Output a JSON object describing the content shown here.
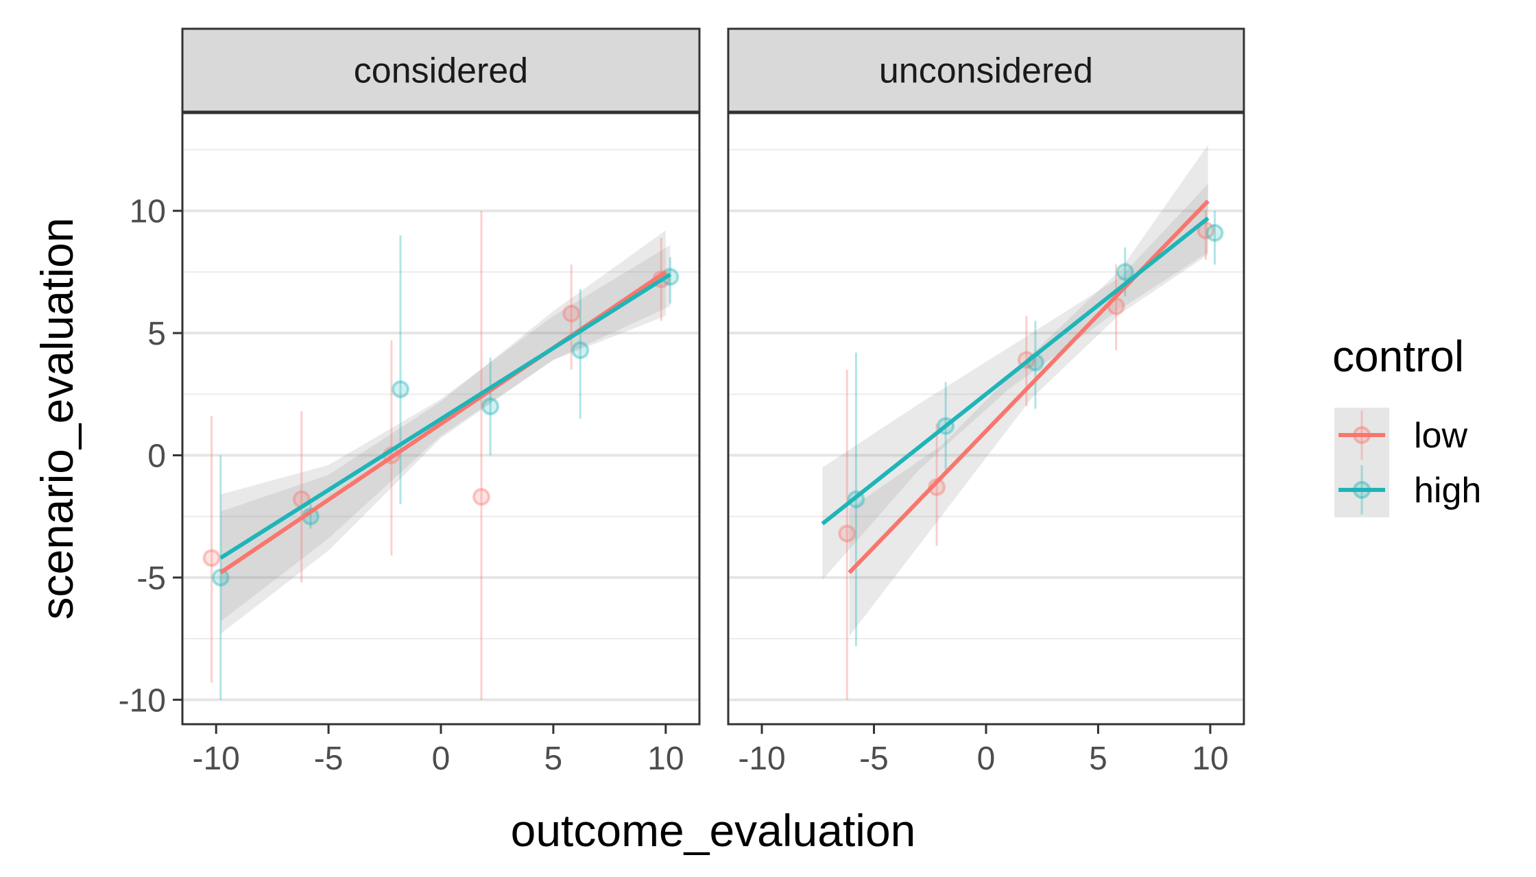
{
  "chart_data": {
    "type": "scatter",
    "xlabel": "outcome_evaluation",
    "ylabel": "scenario_evaluation",
    "xlim": [
      -11.5,
      11.5
    ],
    "ylim": [
      -11,
      14
    ],
    "x_ticks": [
      -10,
      -5,
      0,
      5,
      10
    ],
    "y_ticks": [
      -10,
      -5,
      0,
      5,
      10
    ],
    "grid": true,
    "legend": {
      "title": "control",
      "placement": "right",
      "entries": [
        {
          "key": "low",
          "label": "low",
          "color": "#F8766D"
        },
        {
          "key": "high",
          "label": "high",
          "color": "#1FB5B8"
        }
      ]
    },
    "facets": [
      {
        "label": "considered",
        "points": [
          {
            "series": "low",
            "x": -10.2,
            "y": -4.2,
            "ymin": -9.3,
            "ymax": 1.6
          },
          {
            "series": "low",
            "x": -6.2,
            "y": -1.8,
            "ymin": -5.2,
            "ymax": 1.8
          },
          {
            "series": "low",
            "x": -2.2,
            "y": 0.0,
            "ymin": -4.1,
            "ymax": 4.7
          },
          {
            "series": "low",
            "x": 1.8,
            "y": -1.7,
            "ymin": -10.0,
            "ymax": 10.0
          },
          {
            "series": "low",
            "x": 5.8,
            "y": 5.8,
            "ymin": 3.5,
            "ymax": 7.8
          },
          {
            "series": "low",
            "x": 9.8,
            "y": 7.2,
            "ymin": 5.5,
            "ymax": 8.9
          },
          {
            "series": "high",
            "x": -9.8,
            "y": -5.0,
            "ymin": -10.0,
            "ymax": 0.0
          },
          {
            "series": "high",
            "x": -5.8,
            "y": -2.5,
            "ymin": -3.0,
            "ymax": -2.0
          },
          {
            "series": "high",
            "x": -1.8,
            "y": 2.7,
            "ymin": -2.0,
            "ymax": 9.0
          },
          {
            "series": "high",
            "x": 2.2,
            "y": 2.0,
            "ymin": 0.0,
            "ymax": 4.0
          },
          {
            "series": "high",
            "x": 6.2,
            "y": 4.3,
            "ymin": 1.5,
            "ymax": 6.8
          },
          {
            "series": "high",
            "x": 10.2,
            "y": 7.3,
            "ymin": 6.2,
            "ymax": 8.1
          }
        ],
        "fits": [
          {
            "series": "low",
            "x": [
              -9.8,
              10.0
            ],
            "y": [
              -4.8,
              7.5
            ],
            "ribbon": {
              "x": [
                -9.8,
                -5,
                0,
                5,
                10.0
              ],
              "lo": [
                -7.3,
                -3.9,
                0.7,
                3.9,
                5.7
              ],
              "hi": [
                -2.3,
                -0.8,
                2.2,
                5.9,
                9.2
              ]
            }
          },
          {
            "series": "high",
            "x": [
              -9.8,
              10.2
            ],
            "y": [
              -4.2,
              7.4
            ],
            "ribbon": {
              "x": [
                -9.8,
                -5,
                0,
                5,
                10.2
              ],
              "lo": [
                -6.8,
                -3.4,
                0.8,
                3.9,
                6.1
              ],
              "hi": [
                -1.6,
                -0.4,
                2.3,
                5.7,
                8.6
              ]
            }
          }
        ]
      },
      {
        "label": "unconsidered",
        "points": [
          {
            "series": "low",
            "x": -6.2,
            "y": -3.2,
            "ymin": -10.0,
            "ymax": 3.5
          },
          {
            "series": "low",
            "x": -2.2,
            "y": -1.3,
            "ymin": -3.7,
            "ymax": 1.3
          },
          {
            "series": "low",
            "x": 1.8,
            "y": 3.9,
            "ymin": 2.0,
            "ymax": 5.7
          },
          {
            "series": "low",
            "x": 5.8,
            "y": 6.1,
            "ymin": 4.3,
            "ymax": 7.8
          },
          {
            "series": "low",
            "x": 9.8,
            "y": 9.2,
            "ymin": 8.0,
            "ymax": 10.0
          },
          {
            "series": "high",
            "x": -5.8,
            "y": -1.8,
            "ymin": -7.8,
            "ymax": 4.2
          },
          {
            "series": "high",
            "x": -1.8,
            "y": 1.2,
            "ymin": -0.6,
            "ymax": 3.0
          },
          {
            "series": "high",
            "x": 2.2,
            "y": 3.8,
            "ymin": 1.9,
            "ymax": 5.5
          },
          {
            "series": "high",
            "x": 6.2,
            "y": 7.5,
            "ymin": 6.5,
            "ymax": 8.5
          },
          {
            "series": "high",
            "x": 10.2,
            "y": 9.1,
            "ymin": 7.8,
            "ymax": 10.0
          }
        ],
        "fits": [
          {
            "series": "low",
            "x": [
              -6.1,
              9.9
            ],
            "y": [
              -4.8,
              10.4
            ],
            "ribbon": {
              "x": [
                -6.1,
                -2,
                2,
                6,
                9.9
              ],
              "lo": [
                -7.4,
                -2.5,
                2.3,
                5.8,
                8.2
              ],
              "hi": [
                -2.2,
                0.4,
                4.1,
                7.6,
                12.7
              ]
            }
          },
          {
            "series": "high",
            "x": [
              -7.3,
              9.9
            ],
            "y": [
              -2.8,
              9.7
            ],
            "ribbon": {
              "x": [
                -7.3,
                -3,
                1,
                6,
                9.9
              ],
              "lo": [
                -5.1,
                -0.6,
                2.7,
                6.0,
                8.3
              ],
              "hi": [
                -0.5,
                2.1,
                4.4,
                7.3,
                11.1
              ]
            }
          }
        ]
      }
    ]
  }
}
